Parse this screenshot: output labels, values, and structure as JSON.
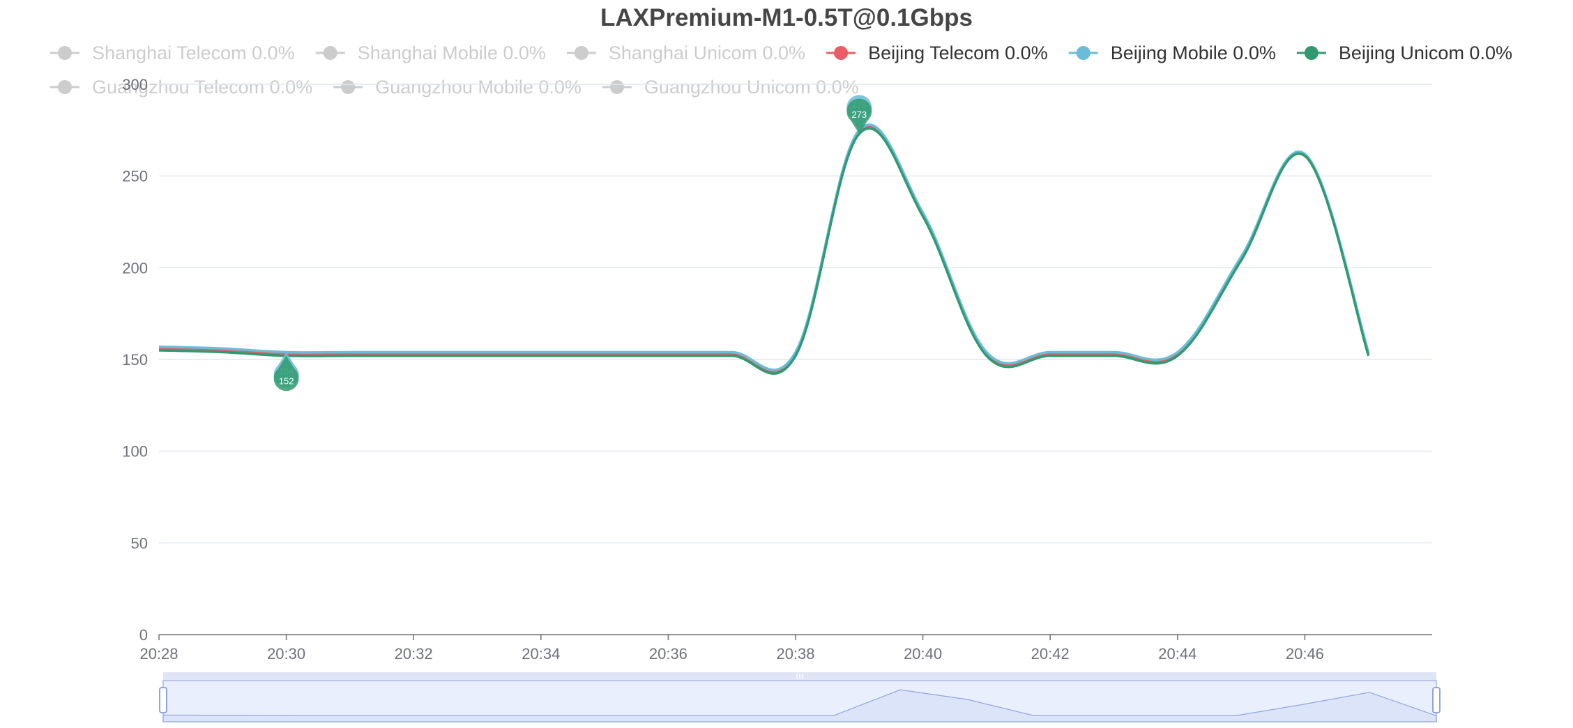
{
  "chart_data": {
    "type": "line",
    "title": "LAXPremium-M1-0.5T@0.1Gbps",
    "x_ticks": [
      "20:28",
      "20:30",
      "20:32",
      "20:34",
      "20:36",
      "20:38",
      "20:40",
      "20:42",
      "20:44",
      "20:46"
    ],
    "ylim": [
      0,
      300
    ],
    "y_ticks": [
      0,
      50,
      100,
      150,
      200,
      250,
      300
    ],
    "grid": true,
    "legend_position": "top",
    "legend": [
      {
        "name": "Shanghai Telecom 0.0%",
        "color": "#cccccc",
        "active": false
      },
      {
        "name": "Shanghai Mobile 0.0%",
        "color": "#cccccc",
        "active": false
      },
      {
        "name": "Shanghai Unicom 0.0%",
        "color": "#cccccc",
        "active": false
      },
      {
        "name": "Beijing Telecom 0.0%",
        "color": "#e85d66",
        "active": true
      },
      {
        "name": "Beijing Mobile 0.0%",
        "color": "#6bbcd9",
        "active": true
      },
      {
        "name": "Beijing Unicom 0.0%",
        "color": "#2f9a6f",
        "active": true
      },
      {
        "name": "Guangzhou Telecom 0.0%",
        "color": "#cccccc",
        "active": false
      },
      {
        "name": "Guangzhou Mobile 0.0%",
        "color": "#cccccc",
        "active": false
      },
      {
        "name": "Guangzhou Unicom 0.0%",
        "color": "#cccccc",
        "active": false
      }
    ],
    "x_minutes": [
      0,
      1,
      2,
      3,
      4,
      5,
      6,
      7,
      8,
      9,
      10,
      11,
      12,
      13,
      14,
      15,
      16,
      17,
      18,
      19
    ],
    "series": [
      {
        "name": "Beijing Telecom",
        "color": "#e85d66",
        "values": [
          156,
          155,
          153,
          153,
          153,
          153,
          153,
          153,
          153,
          153,
          153,
          274,
          229,
          153,
          153,
          153,
          153,
          205,
          261,
          153
        ]
      },
      {
        "name": "Beijing Mobile",
        "color": "#6bbcd9",
        "values": [
          157,
          156,
          154,
          154,
          154,
          154,
          154,
          154,
          154,
          154,
          154,
          275,
          230,
          154,
          154,
          154,
          154,
          206,
          262,
          154
        ]
      },
      {
        "name": "Beijing Unicom",
        "color": "#2f9a6f",
        "values": [
          155,
          154,
          152,
          152,
          152,
          152,
          152,
          152,
          152,
          152,
          152,
          273,
          228,
          152,
          152,
          152,
          152,
          204,
          261,
          152
        ]
      }
    ],
    "markers": [
      {
        "type": "min",
        "x_minutes": 2,
        "labels": [
          "154",
          "152"
        ],
        "colors": [
          "#6bbcd9",
          "#2f9a6f"
        ]
      },
      {
        "type": "max",
        "x_minutes": 11,
        "labels": [
          "275",
          "273"
        ],
        "colors": [
          "#6bbcd9",
          "#2f9a6f"
        ]
      }
    ],
    "data_zoom": {
      "start_percent": 0,
      "end_percent": 100,
      "fill": "#dbe4f8",
      "border": "#a8b8e0"
    }
  }
}
